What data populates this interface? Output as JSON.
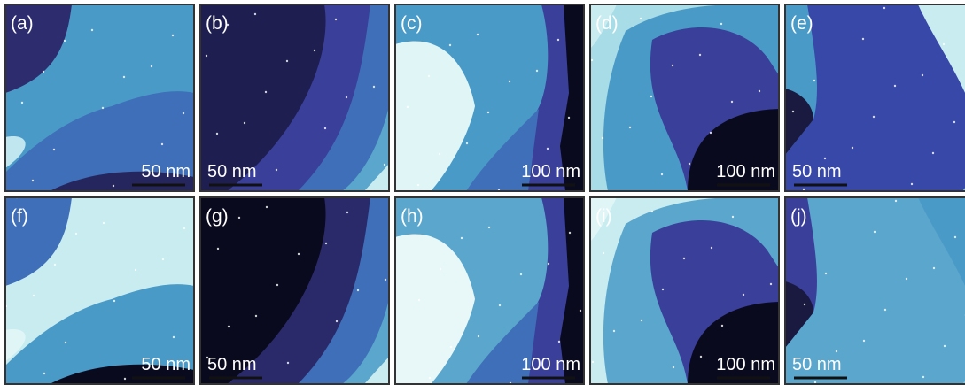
{
  "panels": [
    {
      "label": "(a)",
      "scale": "50 nm"
    },
    {
      "label": "(b)",
      "scale": "50 nm"
    },
    {
      "label": "(c)",
      "scale": "100 nm"
    },
    {
      "label": "(d)",
      "scale": "100 nm"
    },
    {
      "label": "(e)",
      "scale": "50 nm"
    },
    {
      "label": "(f)",
      "scale": "50 nm"
    },
    {
      "label": "(g)",
      "scale": "50 nm"
    },
    {
      "label": "(h)",
      "scale": "100 nm"
    },
    {
      "label": "(i)",
      "scale": "100 nm"
    },
    {
      "label": "(j)",
      "scale": "50 nm"
    }
  ]
}
